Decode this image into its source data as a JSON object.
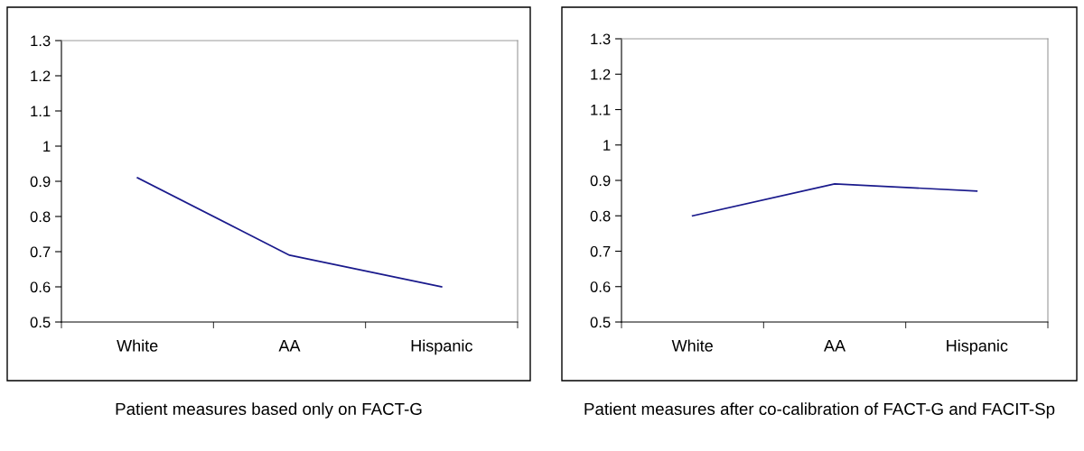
{
  "chart_data": [
    {
      "type": "line",
      "title": "Patient measures based only on FACT-G",
      "categories": [
        "White",
        "AA",
        "Hispanic"
      ],
      "series": [
        {
          "color": "#1a1a8c",
          "values": [
            0.91,
            0.69,
            0.6
          ]
        }
      ],
      "ylim": [
        0.5,
        1.3
      ],
      "yticks": [
        0.5,
        0.6,
        0.7,
        0.8,
        0.9,
        1,
        1.1,
        1.2,
        1.3
      ],
      "grid": false,
      "legend": false
    },
    {
      "type": "line",
      "title": "Patient measures after co-calibration of FACT-G and FACIT-Sp",
      "categories": [
        "White",
        "AA",
        "Hispanic"
      ],
      "series": [
        {
          "color": "#1a1a8c",
          "values": [
            0.8,
            0.89,
            0.87
          ]
        }
      ],
      "ylim": [
        0.5,
        1.3
      ],
      "yticks": [
        0.5,
        0.6,
        0.7,
        0.8,
        0.9,
        1,
        1.1,
        1.2,
        1.3
      ],
      "grid": false,
      "legend": false
    }
  ]
}
